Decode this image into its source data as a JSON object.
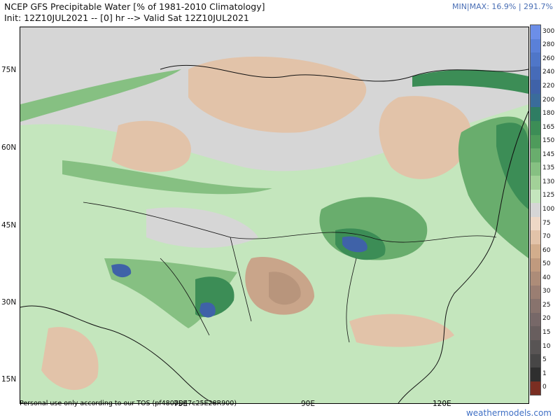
{
  "header": {
    "title_line1": "NCEP GFS Precipitable Water [% of 1981-2010 Climatology]",
    "title_line2": "Init: 12Z10JUL2021 -- [0] hr --> Valid Sat 12Z10JUL2021",
    "minmax_label": "MIN|MAX:",
    "minmax_value": "16.9% | 291.7%"
  },
  "axes": {
    "lat_labels": [
      "75N",
      "60N",
      "45N",
      "30N",
      "15N"
    ],
    "lon_labels": [
      "75E",
      "90E",
      "120E"
    ]
  },
  "footer": {
    "disclaimer": "Personal use only according to our TOS (pf4800D47c25E28R900)",
    "brand": "weathermodels.com"
  },
  "colorbar": {
    "labels": [
      "300",
      "280",
      "260",
      "240",
      "220",
      "200",
      "180",
      "165",
      "150",
      "145",
      "135",
      "130",
      "125",
      "100",
      "75",
      "70",
      "60",
      "50",
      "40",
      "30",
      "25",
      "20",
      "15",
      "10",
      "5",
      "1",
      "0"
    ],
    "colors": [
      "#6c8ee8",
      "#5a80d8",
      "#4f76c8",
      "#466bb8",
      "#3f62a8",
      "#3a6c9b",
      "#2f7d63",
      "#3c8d56",
      "#4e9b5b",
      "#69ad6d",
      "#86c082",
      "#a2d198",
      "#c4e6bd",
      "#d6d6d6",
      "#eed8c6",
      "#e2c3a9",
      "#d2ad8c",
      "#c09a7e",
      "#ad8c78",
      "#9a7e72",
      "#88736d",
      "#776868",
      "#685e5e",
      "#585454",
      "#474646",
      "#2f2f2f",
      "#7a2e22"
    ]
  },
  "map_palette": {
    "background": "#d6d6d6",
    "light_green": "#c4e6bd",
    "mid_green": "#86c082",
    "dark_green": "#3c8d56",
    "blue": "#3f62a8",
    "tan": "#e2c3a9",
    "brown": "#b8957c"
  }
}
